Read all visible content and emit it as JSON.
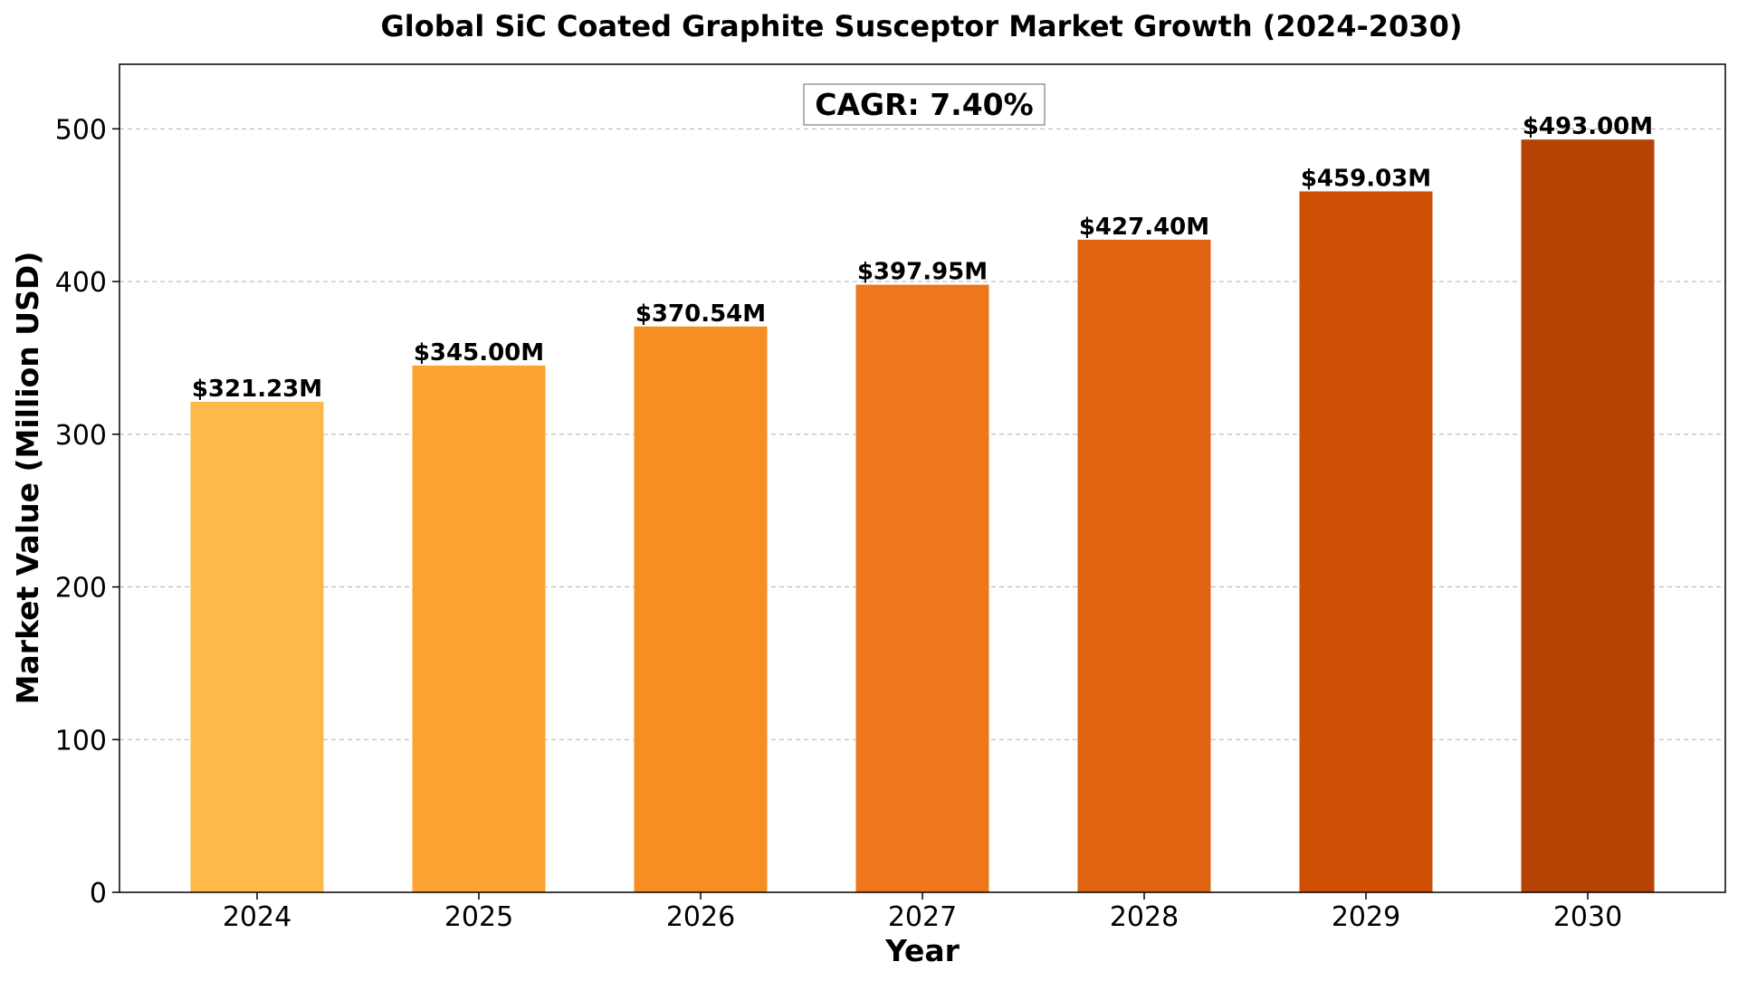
{
  "chart_data": {
    "type": "bar",
    "title": "Global SiC Coated Graphite Susceptor Market Growth (2024-2030)",
    "xlabel": "Year",
    "ylabel": "Market Value (Million USD)",
    "categories": [
      "2024",
      "2025",
      "2026",
      "2027",
      "2028",
      "2029",
      "2030"
    ],
    "values": [
      321.23,
      345.0,
      370.54,
      397.95,
      427.4,
      459.03,
      493.0
    ],
    "data_labels": [
      "$321.23M",
      "$345.00M",
      "$370.54M",
      "$397.95M",
      "$427.40M",
      "$459.03M",
      "$493.00M"
    ],
    "bar_colors": [
      "#FDB94A",
      "#FCA332",
      "#F78E22",
      "#EE771B",
      "#E06311",
      "#CF4F04",
      "#B64204"
    ],
    "ylim": [
      0,
      542.3
    ],
    "yticks": [
      0,
      100,
      200,
      300,
      400,
      500
    ],
    "grid": "y-dashed",
    "annotation": "CAGR: 7.40%"
  }
}
